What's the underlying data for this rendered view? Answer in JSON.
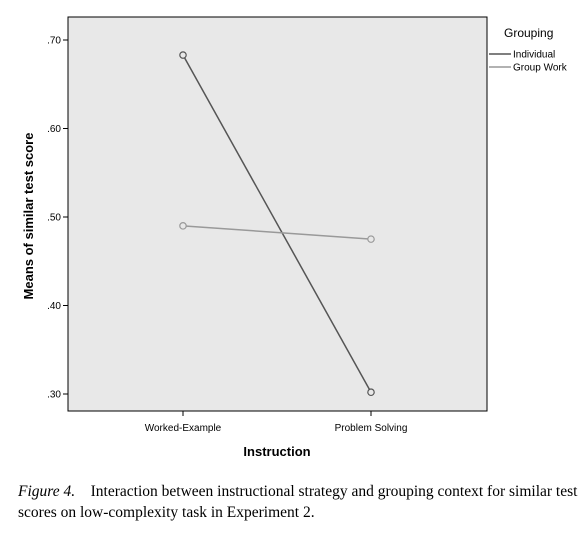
{
  "chart_data": {
    "type": "line",
    "categories": [
      "Worked-Example",
      "Problem Solving"
    ],
    "xlabel": "Instruction",
    "ylabel": "Means of similar test score",
    "ylim": [
      0.3,
      0.7
    ],
    "yticks": [
      ".30",
      ".40",
      ".50",
      ".60",
      ".70"
    ],
    "yticks_values": [
      0.3,
      0.4,
      0.5,
      0.6,
      0.7
    ],
    "legend_title": "Grouping",
    "legend_position": "right",
    "series": [
      {
        "name": "Individual",
        "values": [
          0.683,
          0.302
        ],
        "color": "#555555"
      },
      {
        "name": "Group Work",
        "values": [
          0.49,
          0.475
        ],
        "color": "#999999"
      }
    ],
    "plot_background": "#e8e8e8",
    "grid": false
  },
  "caption": {
    "label": "Figure 4.",
    "text": "Interaction between instructional strategy and grouping context for similar test scores on low-complexity task in Experiment 2."
  }
}
